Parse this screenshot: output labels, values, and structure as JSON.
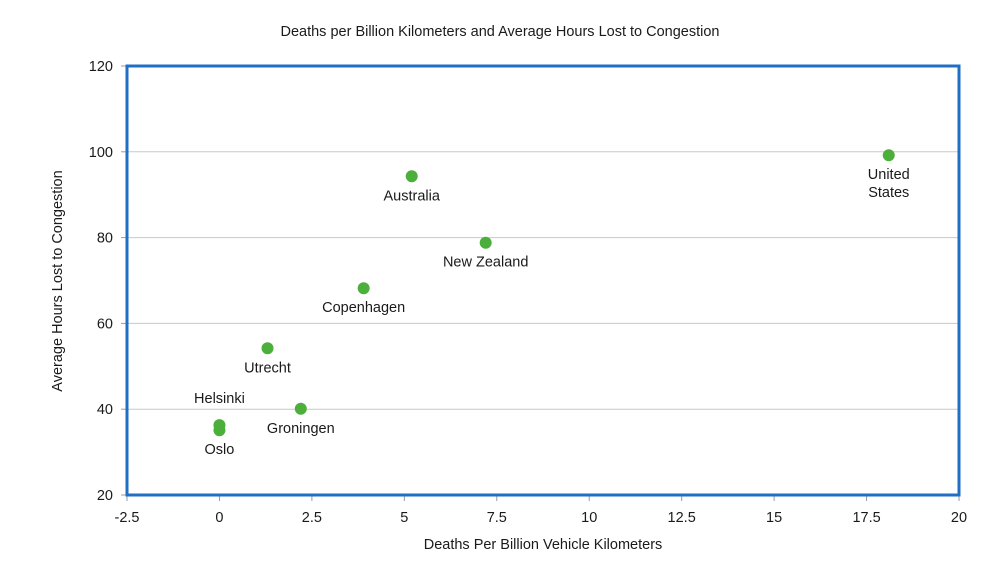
{
  "chart_data": {
    "type": "scatter",
    "title": "Deaths per Billion Kilometers and Average Hours Lost to Congestion",
    "xlabel": "Deaths Per Billion Vehicle Kilometers",
    "ylabel": "Average Hours Lost to Congestion",
    "xlim": [
      -2.5,
      20
    ],
    "ylim": [
      20,
      120
    ],
    "xticks": [
      -2.5,
      0,
      2.5,
      5,
      7.5,
      10,
      12.5,
      15,
      17.5,
      20
    ],
    "xtick_labels": [
      "-2.5",
      "0",
      "2.5",
      "5",
      "7.5",
      "10",
      "12.5",
      "15",
      "17.5",
      "20"
    ],
    "yticks": [
      20,
      40,
      60,
      80,
      100,
      120
    ],
    "ytick_labels": [
      "20",
      "40",
      "60",
      "80",
      "100",
      "120"
    ],
    "grid": "horizontal",
    "marker_color": "#4caf3c",
    "frame_color": "#1f6fc5",
    "points": [
      {
        "label": "Australia",
        "x": 5.2,
        "y": 94.3,
        "label_pos": "below"
      },
      {
        "label": "United States",
        "lines": [
          "United",
          "States"
        ],
        "x": 18.1,
        "y": 99.2,
        "label_pos": "below"
      },
      {
        "label": "New Zealand",
        "x": 7.2,
        "y": 78.8,
        "label_pos": "below"
      },
      {
        "label": "Copenhagen",
        "x": 3.9,
        "y": 68.2,
        "label_pos": "below"
      },
      {
        "label": "Utrecht",
        "x": 1.3,
        "y": 54.2,
        "label_pos": "below"
      },
      {
        "label": "Groningen",
        "x": 2.2,
        "y": 40.1,
        "label_pos": "below"
      },
      {
        "label": "Helsinki",
        "x": 0.0,
        "y": 36.3,
        "label_pos": "above"
      },
      {
        "label": "Oslo",
        "x": 0.0,
        "y": 35.1,
        "label_pos": "below"
      }
    ]
  }
}
